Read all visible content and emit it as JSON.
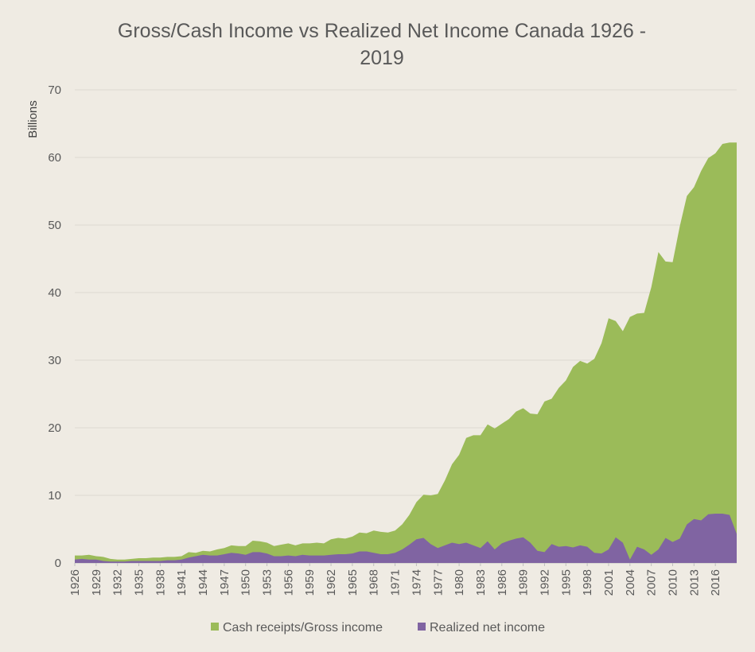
{
  "chart_data": {
    "type": "area",
    "title_line1": "Gross/Cash Income vs Realized Net Income  Canada 1926 -",
    "title_line2": "2019",
    "ylabel": "Billions",
    "ylim": [
      0,
      70
    ],
    "yticks": [
      0,
      10,
      20,
      30,
      40,
      50,
      60,
      70
    ],
    "xlim": [
      1926,
      2019
    ],
    "xticks": [
      1926,
      1929,
      1932,
      1935,
      1938,
      1941,
      1944,
      1947,
      1950,
      1953,
      1956,
      1959,
      1962,
      1965,
      1968,
      1971,
      1974,
      1977,
      1980,
      1983,
      1986,
      1989,
      1992,
      1995,
      1998,
      2001,
      2004,
      2007,
      2010,
      2013,
      2016
    ],
    "grid": true,
    "stacked": false,
    "legend_position": "bottom",
    "x": [
      1926,
      1927,
      1928,
      1929,
      1930,
      1931,
      1932,
      1933,
      1934,
      1935,
      1936,
      1937,
      1938,
      1939,
      1940,
      1941,
      1942,
      1943,
      1944,
      1945,
      1946,
      1947,
      1948,
      1949,
      1950,
      1951,
      1952,
      1953,
      1954,
      1955,
      1956,
      1957,
      1958,
      1959,
      1960,
      1961,
      1962,
      1963,
      1964,
      1965,
      1966,
      1967,
      1968,
      1969,
      1970,
      1971,
      1972,
      1973,
      1974,
      1975,
      1976,
      1977,
      1978,
      1979,
      1980,
      1981,
      1982,
      1983,
      1984,
      1985,
      1986,
      1987,
      1988,
      1989,
      1990,
      1991,
      1992,
      1993,
      1994,
      1995,
      1996,
      1997,
      1998,
      1999,
      2000,
      2001,
      2002,
      2003,
      2004,
      2005,
      2006,
      2007,
      2008,
      2009,
      2010,
      2011,
      2012,
      2013,
      2014,
      2015,
      2016,
      2017,
      2018,
      2019
    ],
    "series": [
      {
        "name": "Cash receipts/Gross income",
        "color": "#9bbb59",
        "values": [
          1.1,
          1.1,
          1.2,
          1.0,
          0.9,
          0.6,
          0.5,
          0.5,
          0.6,
          0.7,
          0.7,
          0.8,
          0.8,
          0.9,
          0.9,
          1.0,
          1.6,
          1.5,
          1.8,
          1.7,
          2.0,
          2.2,
          2.6,
          2.5,
          2.5,
          3.3,
          3.2,
          3.0,
          2.5,
          2.7,
          2.9,
          2.6,
          2.9,
          2.9,
          3.0,
          2.9,
          3.5,
          3.7,
          3.6,
          3.9,
          4.5,
          4.4,
          4.8,
          4.6,
          4.5,
          4.8,
          5.7,
          7.1,
          9.0,
          10.1,
          10.0,
          10.2,
          12.2,
          14.6,
          16.0,
          18.5,
          18.9,
          18.9,
          20.5,
          19.9,
          20.6,
          21.3,
          22.4,
          22.9,
          22.1,
          22.0,
          23.9,
          24.3,
          25.9,
          27.0,
          29.0,
          29.9,
          29.5,
          30.2,
          32.5,
          36.2,
          35.8,
          34.3,
          36.4,
          36.9,
          37.0,
          40.8,
          46.0,
          44.6,
          44.5,
          49.8,
          54.3,
          55.6,
          58.0,
          59.9,
          60.6,
          62.0,
          62.2,
          62.2
        ]
      },
      {
        "name": "Realized net income",
        "color": "#8064a2",
        "values": [
          0.5,
          0.6,
          0.5,
          0.5,
          0.3,
          0.2,
          0.2,
          0.2,
          0.3,
          0.3,
          0.3,
          0.3,
          0.3,
          0.4,
          0.4,
          0.5,
          0.8,
          1.0,
          1.2,
          1.1,
          1.1,
          1.3,
          1.5,
          1.4,
          1.2,
          1.6,
          1.6,
          1.4,
          1.0,
          1.0,
          1.1,
          1.0,
          1.2,
          1.1,
          1.1,
          1.1,
          1.2,
          1.3,
          1.3,
          1.4,
          1.7,
          1.7,
          1.5,
          1.3,
          1.3,
          1.5,
          2.0,
          2.7,
          3.5,
          3.7,
          2.8,
          2.2,
          2.6,
          3.0,
          2.8,
          3.0,
          2.6,
          2.2,
          3.2,
          2.0,
          2.9,
          3.3,
          3.6,
          3.8,
          3.0,
          1.8,
          1.6,
          2.8,
          2.4,
          2.5,
          2.3,
          2.6,
          2.4,
          1.5,
          1.4,
          2.0,
          3.8,
          3.0,
          0.5,
          2.4,
          2.0,
          1.2,
          2.0,
          3.7,
          3.1,
          3.6,
          5.7,
          6.5,
          6.3,
          7.2,
          7.3,
          7.3,
          7.1,
          4.3
        ]
      }
    ]
  }
}
